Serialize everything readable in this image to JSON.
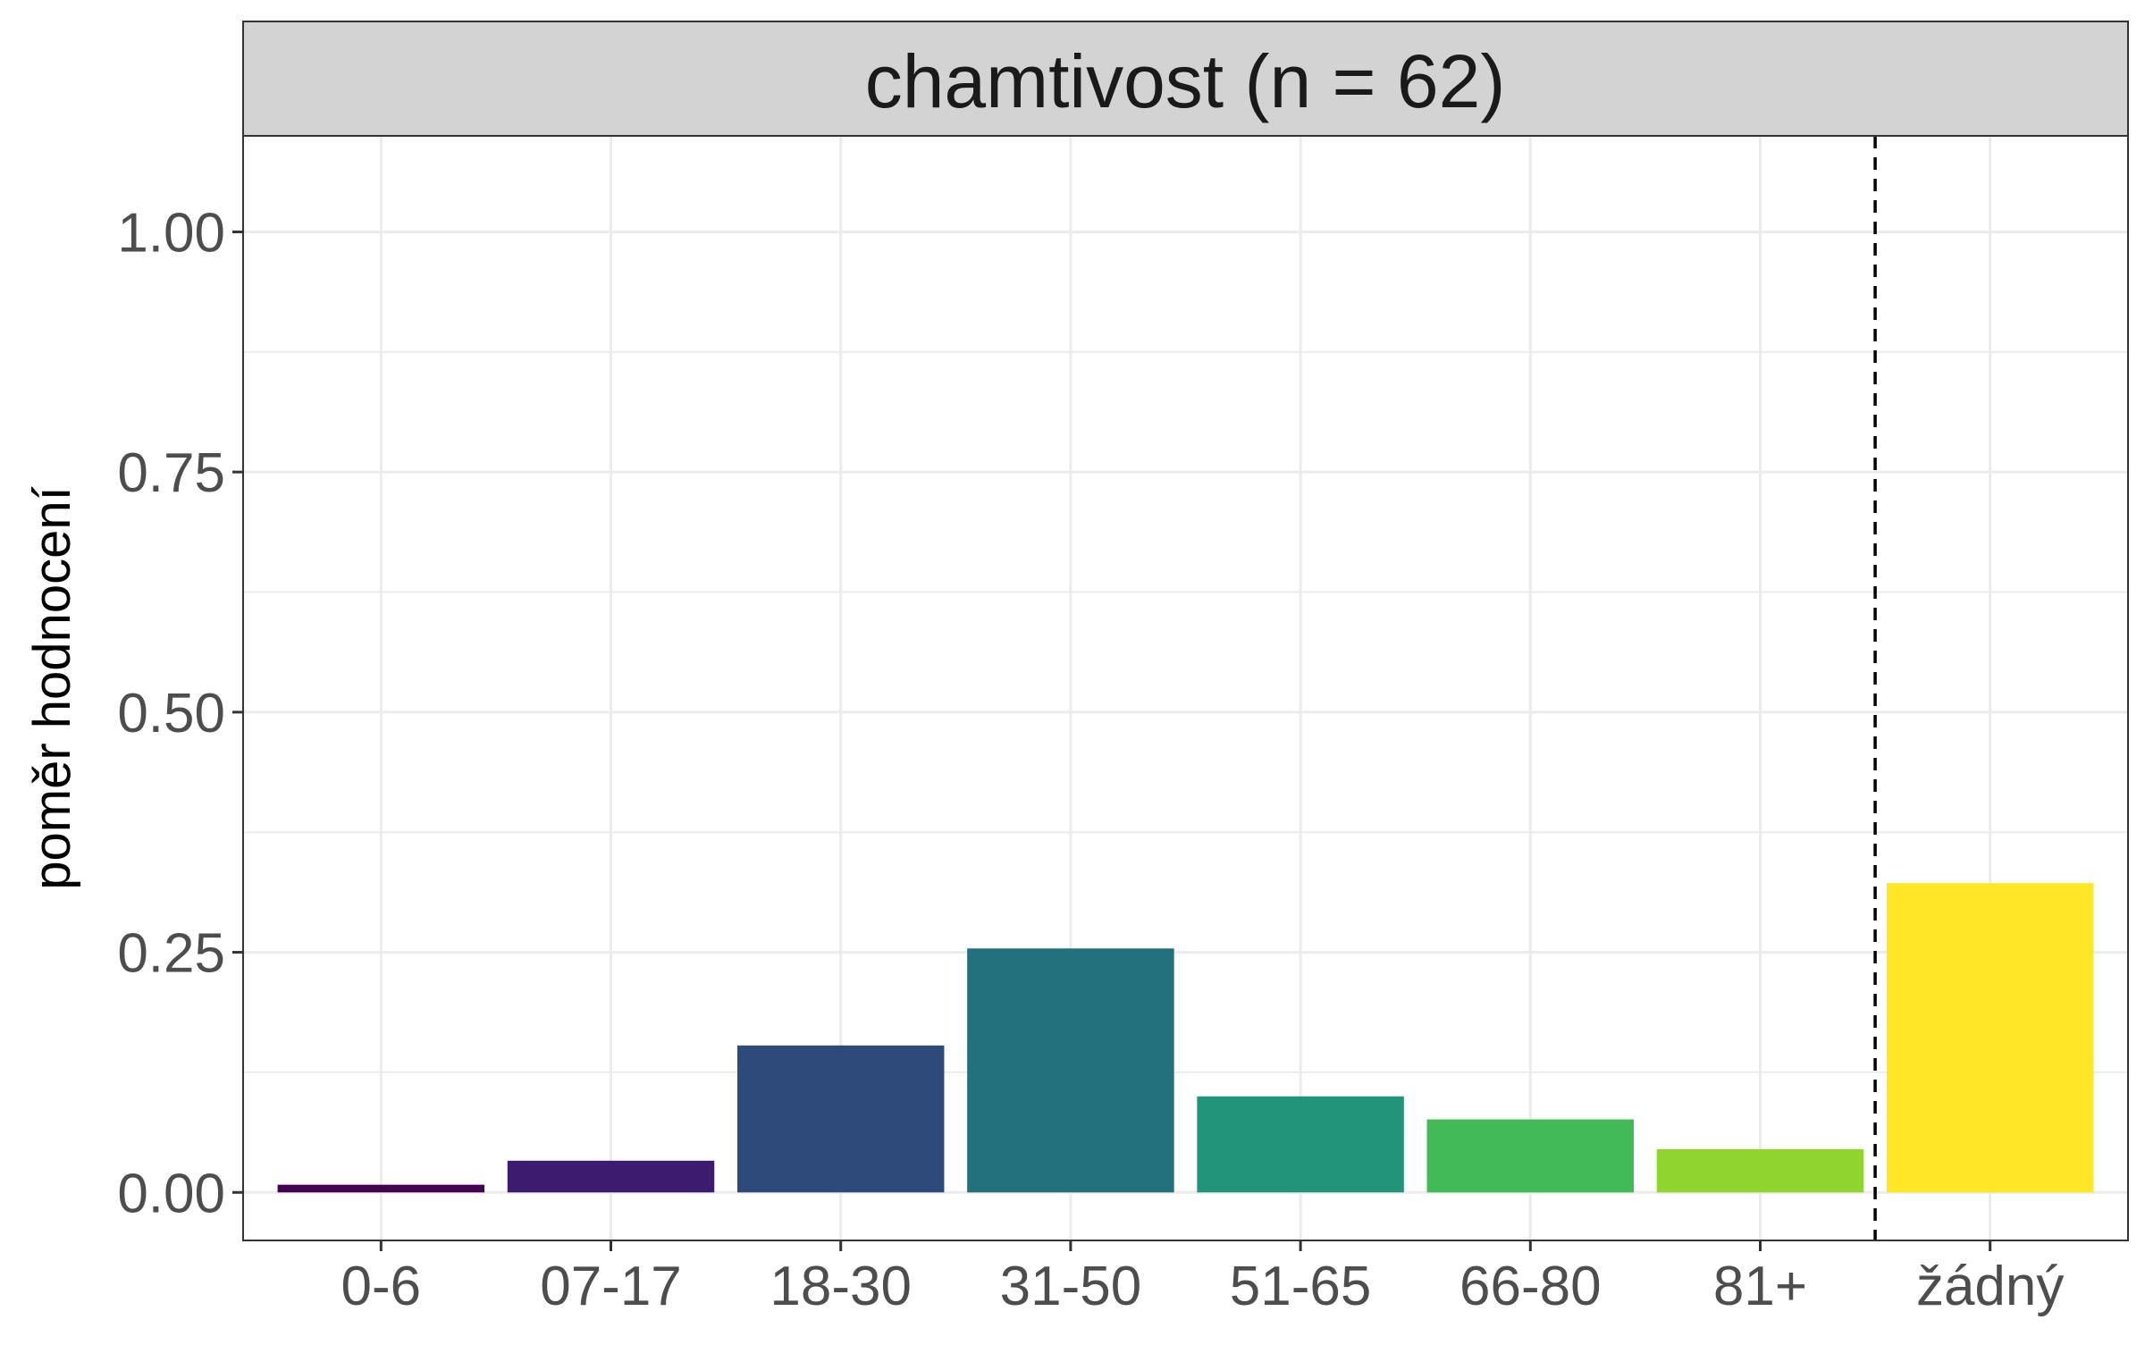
{
  "chart_data": {
    "type": "bar",
    "title": "chamtivost (n = 62)",
    "xlabel": "",
    "ylabel": "poměr hodnocení",
    "categories": [
      "0-6",
      "07-17",
      "18-30",
      "31-50",
      "51-65",
      "66-80",
      "81+",
      "žádný"
    ],
    "values": [
      0.008,
      0.033,
      0.153,
      0.254,
      0.1,
      0.076,
      0.045,
      0.322
    ],
    "colors": [
      "#440154",
      "#3B1C6F",
      "#2D4A7A",
      "#21707C",
      "#21947A",
      "#42BA58",
      "#8FD52E",
      "#FDE725"
    ],
    "ylim": [
      -0.05,
      1.1
    ],
    "yticks": [
      0.0,
      0.25,
      0.5,
      0.75,
      1.0
    ],
    "ytick_labels": [
      "0.00",
      "0.25",
      "0.50",
      "0.75",
      "1.00"
    ],
    "grid": true,
    "reference_line": {
      "between": [
        "81+",
        "žádný"
      ],
      "style": "dashed"
    },
    "colors_theme": {
      "strip_bg": "#D3D3D3",
      "grid": "#EBEBEB",
      "panel_border": "#333333",
      "tick_text": "#4D4D4D",
      "axis_title": "#000000"
    }
  }
}
